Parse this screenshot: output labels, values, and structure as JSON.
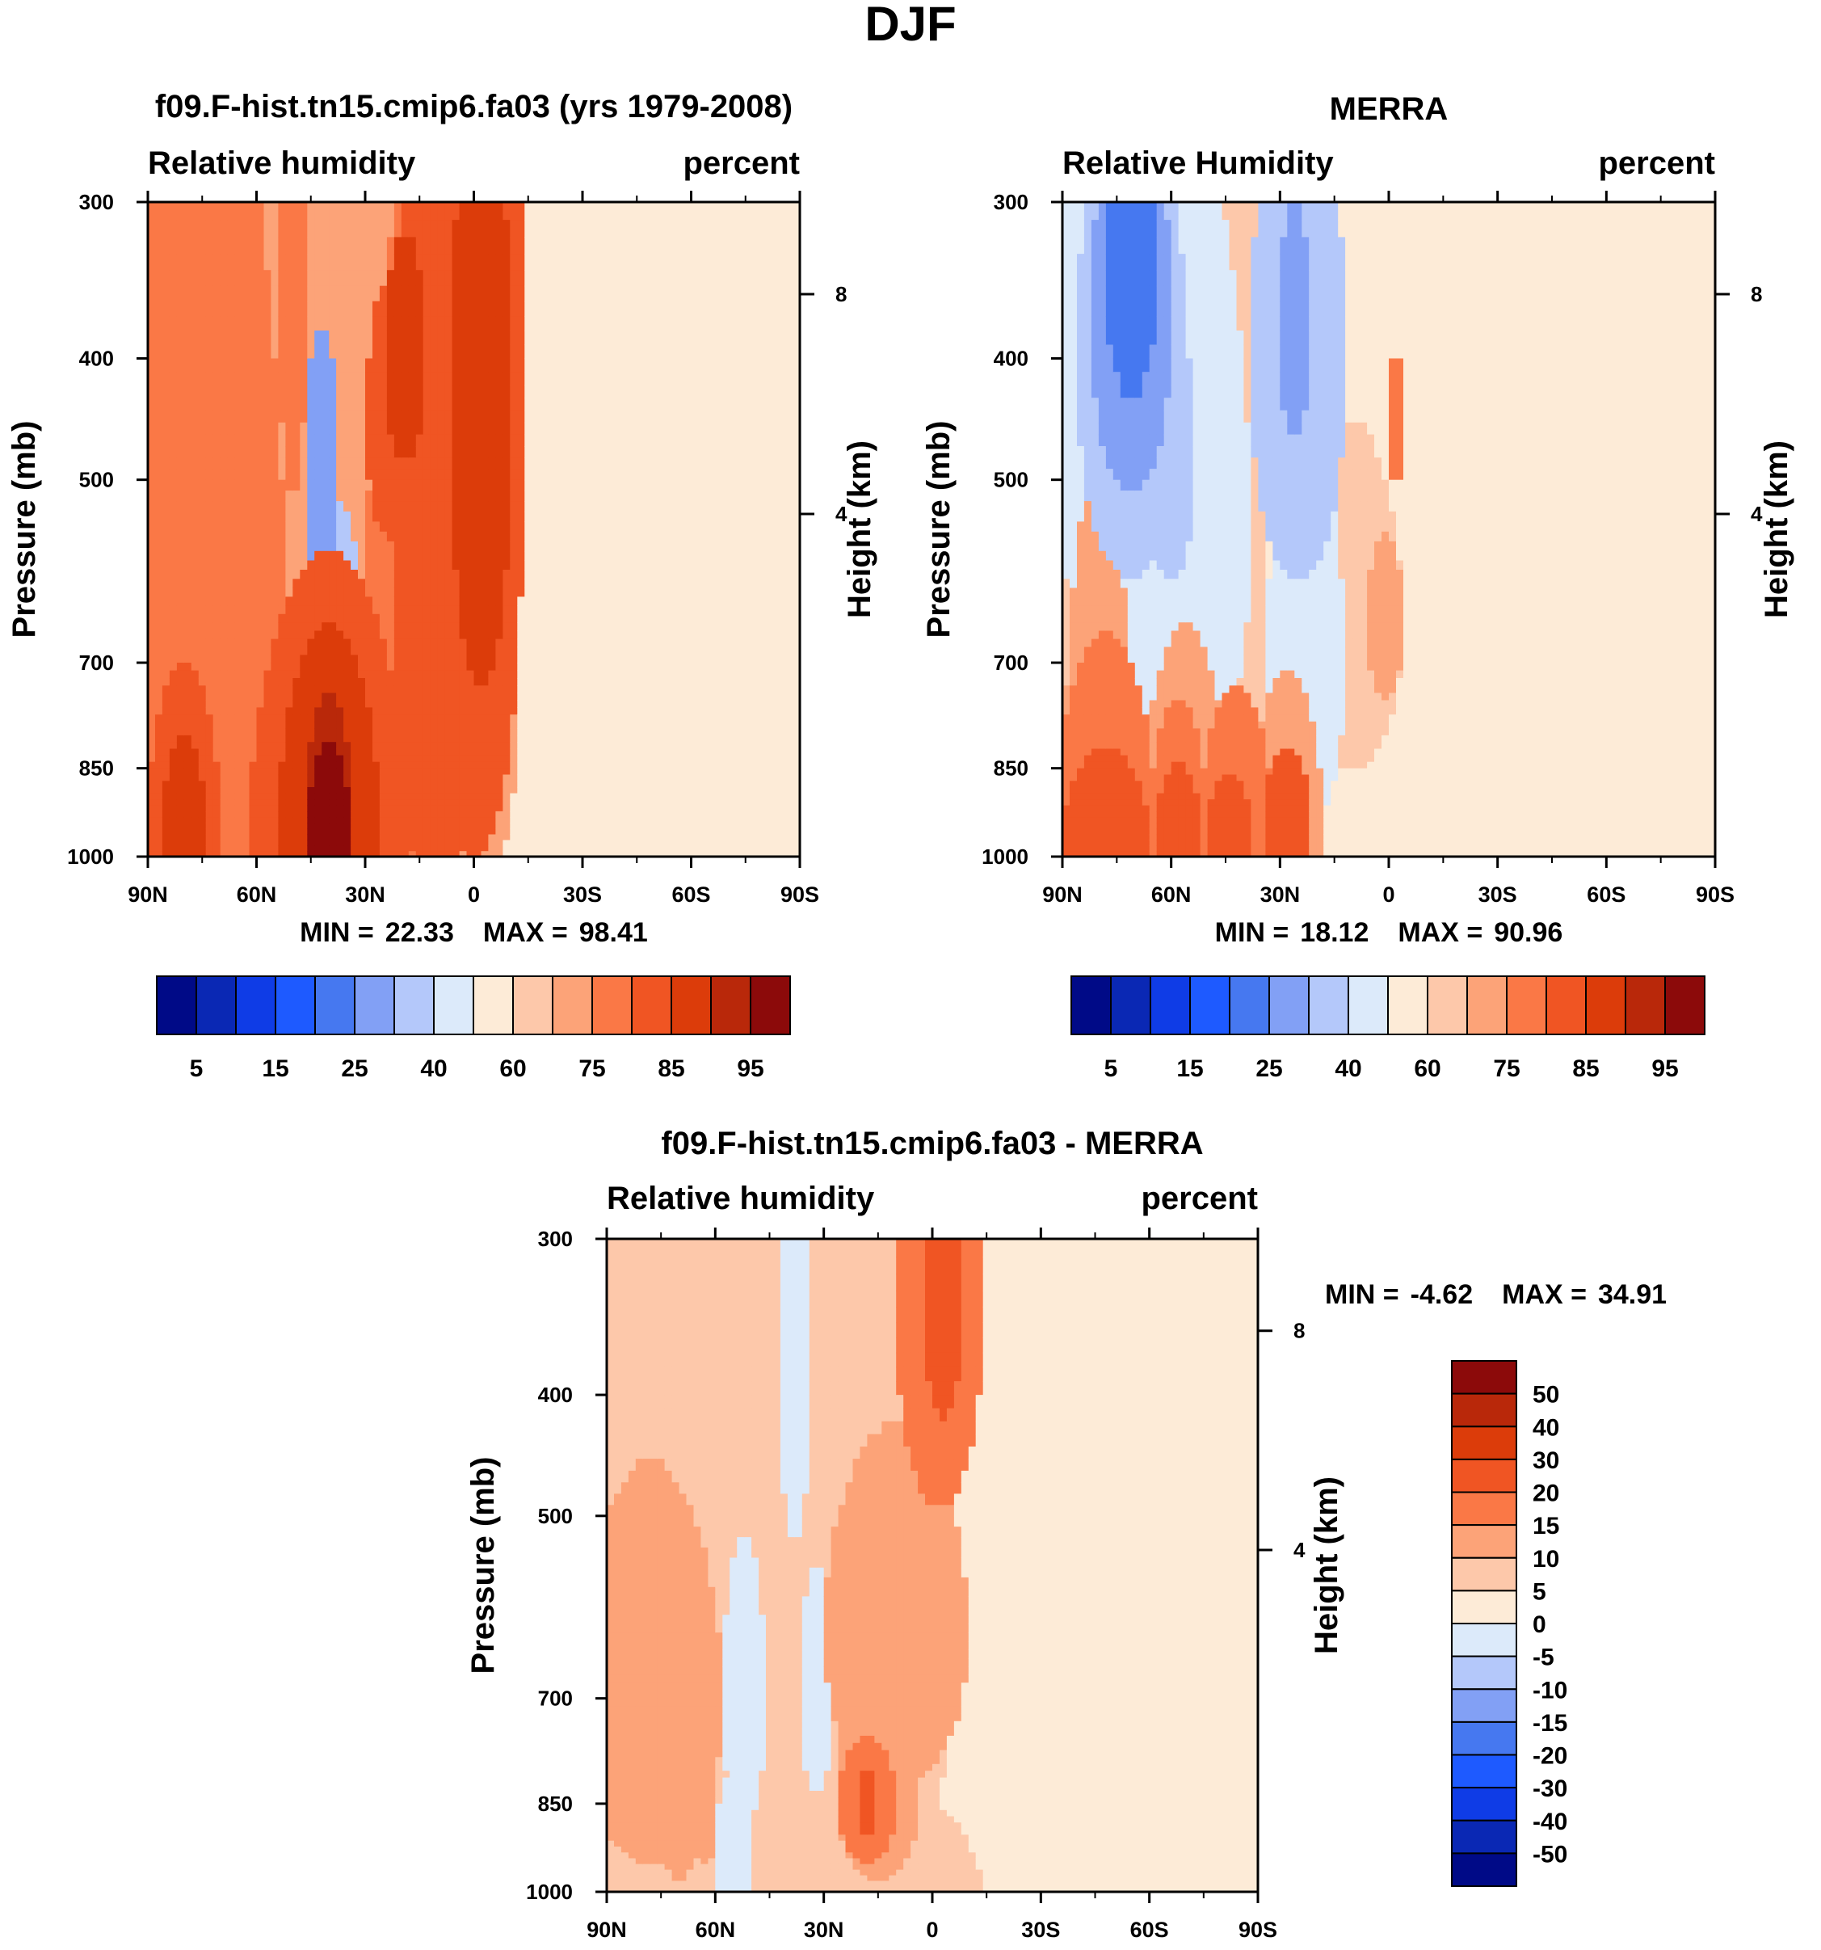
{
  "page_title": "DJF",
  "palettes": {
    "absolute": [
      "#000a87",
      "#0a28b4",
      "#0f3ce6",
      "#1e5aff",
      "#4678f0",
      "#82a0f5",
      "#b4c8fa",
      "#dceafa",
      "#fdebd7",
      "#fdc8aa",
      "#fca378",
      "#fa7846",
      "#f05523",
      "#dc3c0a",
      "#b9280a",
      "#8c0a0a"
    ],
    "difference": [
      "#000a87",
      "#0a28b4",
      "#0f3ce6",
      "#1e5aff",
      "#4678f0",
      "#82a0f5",
      "#b4c8fa",
      "#dceafa",
      "#fdebd7",
      "#fdc8aa",
      "#fca378",
      "#fa7846",
      "#f05523",
      "#dc3c0a",
      "#b9280a",
      "#8c0a0a"
    ]
  },
  "chart_data": [
    {
      "type": "heatmap",
      "title": "f09.F-hist.tn15.cmip6.fa03 (yrs 1979-2008)",
      "left_label": "Relative humidity",
      "right_label": "percent",
      "ylabel": "Pressure (mb)",
      "ylabel_right": "Height (km)",
      "x_ticks": [
        "90N",
        "60N",
        "30N",
        "0",
        "30S",
        "60S",
        "90S"
      ],
      "x_range": [
        90,
        -90
      ],
      "y_ticks": [
        300,
        400,
        500,
        700,
        850,
        1000
      ],
      "y_range": [
        300,
        1000
      ],
      "height_ticks": [
        {
          "km": 8,
          "label": "8"
        },
        {
          "km": 4,
          "label": "4"
        }
      ],
      "stats": {
        "min_label": "MIN =",
        "min": "22.33",
        "max_label": "MAX =",
        "max": "98.41"
      },
      "colorbar": {
        "palette": "absolute",
        "labels": [
          "5",
          "15",
          "25",
          "40",
          "60",
          "75",
          "85",
          "95"
        ]
      },
      "fields": {
        "background": 8,
        "blobs": [
          [
            70,
            2,
            40,
            700,
            9
          ],
          [
            45,
            -3,
            20,
            600,
            9
          ],
          [
            60,
            22,
            28,
            700,
            10
          ],
          [
            42,
            22,
            18,
            700,
            10
          ],
          [
            55,
            10,
            28,
            650,
            11
          ],
          [
            38,
            12,
            15,
            650,
            11
          ],
          [
            62,
            68,
            35,
            680,
            10
          ],
          [
            40,
            78,
            18,
            640,
            11
          ],
          [
            48,
            80,
            12,
            600,
            12
          ],
          [
            60,
            90,
            14,
            400,
            12
          ],
          [
            28,
            92,
            8,
            450,
            13
          ],
          [
            38,
            50,
            22,
            950,
            12
          ],
          [
            30,
            50,
            14,
            950,
            13
          ],
          [
            22,
            50,
            7,
            960,
            14
          ],
          [
            15,
            50,
            6,
            960,
            15
          ],
          [
            36,
            40,
            5,
            160,
            11
          ],
          [
            25,
            10,
            10,
            950,
            12
          ],
          [
            16,
            10,
            6,
            960,
            13
          ],
          [
            6,
            7,
            3,
            140,
            15
          ],
          [
            20,
            60,
            10,
            600,
            7
          ],
          [
            28,
            38,
            12,
            550,
            7
          ],
          [
            16,
            52,
            8,
            680,
            6
          ],
          [
            12,
            48,
            5,
            500,
            5
          ],
          [
            16,
            75,
            12,
            700,
            11
          ],
          [
            12,
            70,
            10,
            450,
            12
          ],
          [
            8,
            71,
            6,
            400,
            13
          ],
          [
            28,
            20,
            23,
            400,
            7
          ],
          [
            10,
            22,
            9,
            320,
            6
          ],
          [
            7,
            20,
            6,
            230,
            5
          ],
          [
            16,
            58,
            7,
            500,
            7
          ],
          [
            6,
            58,
            5,
            440,
            8
          ],
          [
            25,
            67,
            11,
            700,
            8
          ],
          [
            20,
            88,
            8,
            310,
            9
          ],
          [
            10,
            88,
            5,
            140,
            9
          ]
        ]
      }
    },
    {
      "type": "heatmap",
      "title": "MERRA",
      "left_label": "Relative Humidity",
      "right_label": "percent",
      "ylabel": "Pressure (mb)",
      "ylabel_right": "Height (km)",
      "x_ticks": [
        "90N",
        "60N",
        "30N",
        "0",
        "30S",
        "60S",
        "90S"
      ],
      "x_range": [
        90,
        -90
      ],
      "y_ticks": [
        300,
        400,
        500,
        700,
        850,
        1000
      ],
      "y_range": [
        300,
        1000
      ],
      "height_ticks": [
        {
          "km": 8,
          "label": "8"
        },
        {
          "km": 4,
          "label": "4"
        }
      ],
      "stats": {
        "min_label": "MIN =",
        "min": "18.12",
        "max_label": "MAX =",
        "max": "90.96"
      },
      "colorbar": {
        "palette": "absolute",
        "labels": [
          "5",
          "15",
          "25",
          "40",
          "60",
          "75",
          "85",
          "95"
        ]
      },
      "fields": {
        "background": 8,
        "blobs": [
          [
            80,
            2,
            42,
            650,
            9
          ],
          [
            45,
            0,
            20,
            800,
            9
          ],
          [
            60,
            32,
            18,
            700,
            9
          ],
          [
            55,
            45,
            12,
            650,
            9
          ],
          [
            50,
            15,
            14,
            500,
            9
          ],
          [
            45,
            10,
            10,
            930,
            10
          ],
          [
            30,
            12,
            14,
            960,
            11
          ],
          [
            15,
            12,
            12,
            970,
            12
          ],
          [
            30,
            34,
            12,
            950,
            10
          ],
          [
            20,
            32,
            8,
            950,
            11
          ],
          [
            12,
            32,
            6,
            960,
            12
          ],
          [
            22,
            48,
            10,
            950,
            11
          ],
          [
            10,
            46,
            6,
            960,
            12
          ],
          [
            24,
            62,
            10,
            950,
            10
          ],
          [
            14,
            62,
            7,
            960,
            12
          ],
          [
            8,
            62,
            5,
            970,
            12
          ],
          [
            20,
            80,
            14,
            650,
            9
          ],
          [
            10,
            89,
            5,
            650,
            10
          ],
          [
            5,
            92,
            3,
            450,
            11
          ],
          [
            35,
            20,
            22,
            420,
            7
          ],
          [
            28,
            38,
            14,
            550,
            7
          ],
          [
            25,
            67,
            11,
            700,
            7
          ],
          [
            12,
            30,
            7,
            480,
            6
          ],
          [
            20,
            19,
            15,
            400,
            6
          ],
          [
            14,
            19,
            11,
            370,
            5
          ],
          [
            9,
            19,
            7,
            340,
            4
          ],
          [
            20,
            65,
            13,
            400,
            6
          ],
          [
            8,
            64,
            5,
            380,
            5
          ],
          [
            15,
            52,
            8,
            620,
            8
          ]
        ]
      }
    },
    {
      "type": "heatmap",
      "title": "f09.F-hist.tn15.cmip6.fa03 - MERRA",
      "left_label": "Relative humidity",
      "right_label": "percent",
      "ylabel": "Pressure (mb)",
      "ylabel_right": "Height (km)",
      "x_ticks": [
        "90N",
        "60N",
        "30N",
        "0",
        "30S",
        "60S",
        "90S"
      ],
      "x_range": [
        90,
        -90
      ],
      "y_ticks": [
        300,
        400,
        500,
        700,
        850,
        1000
      ],
      "y_range": [
        300,
        1000
      ],
      "height_ticks": [
        {
          "km": 8,
          "label": "8"
        },
        {
          "km": 4,
          "label": "4"
        }
      ],
      "stats": {
        "min_label": "MIN =",
        "min": "-4.62",
        "max_label": "MAX =",
        "max": "34.91"
      },
      "colorbar": {
        "palette": "difference",
        "labels": [
          "50",
          "40",
          "30",
          "20",
          "15",
          "10",
          "5",
          "0",
          "-5",
          "-10",
          "-15",
          "-20",
          "-30",
          "-40",
          "-50"
        ]
      },
      "fields": {
        "background": 8,
        "blobs": [
          [
            70,
            5,
            30,
            700,
            9
          ],
          [
            40,
            15,
            40,
            400,
            9
          ],
          [
            70,
            60,
            30,
            800,
            9
          ],
          [
            60,
            40,
            18,
            600,
            9
          ],
          [
            58,
            75,
            20,
            560,
            9
          ],
          [
            10,
            80,
            8,
            200,
            9
          ],
          [
            38,
            12,
            25,
            950,
            9
          ],
          [
            20,
            80,
            20,
            620,
            10
          ],
          [
            16,
            75,
            12,
            820,
            10
          ],
          [
            10,
            72,
            8,
            850,
            11
          ],
          [
            5,
            72,
            3,
            850,
            12
          ],
          [
            15,
            92,
            12,
            340,
            11
          ],
          [
            10,
            93,
            6,
            320,
            12
          ],
          [
            12,
            20,
            5,
            860,
            10
          ],
          [
            8,
            27,
            4,
            870,
            10
          ],
          [
            25,
            12,
            20,
            700,
            10
          ],
          [
            30,
            48,
            8,
            600,
            8
          ],
          [
            35,
            55,
            8,
            380,
            8
          ],
          [
            18,
            38,
            6,
            700,
            7
          ],
          [
            14,
            58,
            5,
            690,
            7
          ],
          [
            16,
            52,
            4,
            370,
            7
          ],
          [
            18,
            35,
            6,
            980,
            7
          ],
          [
            25,
            88,
            18,
            1100,
            9
          ]
        ]
      }
    }
  ]
}
